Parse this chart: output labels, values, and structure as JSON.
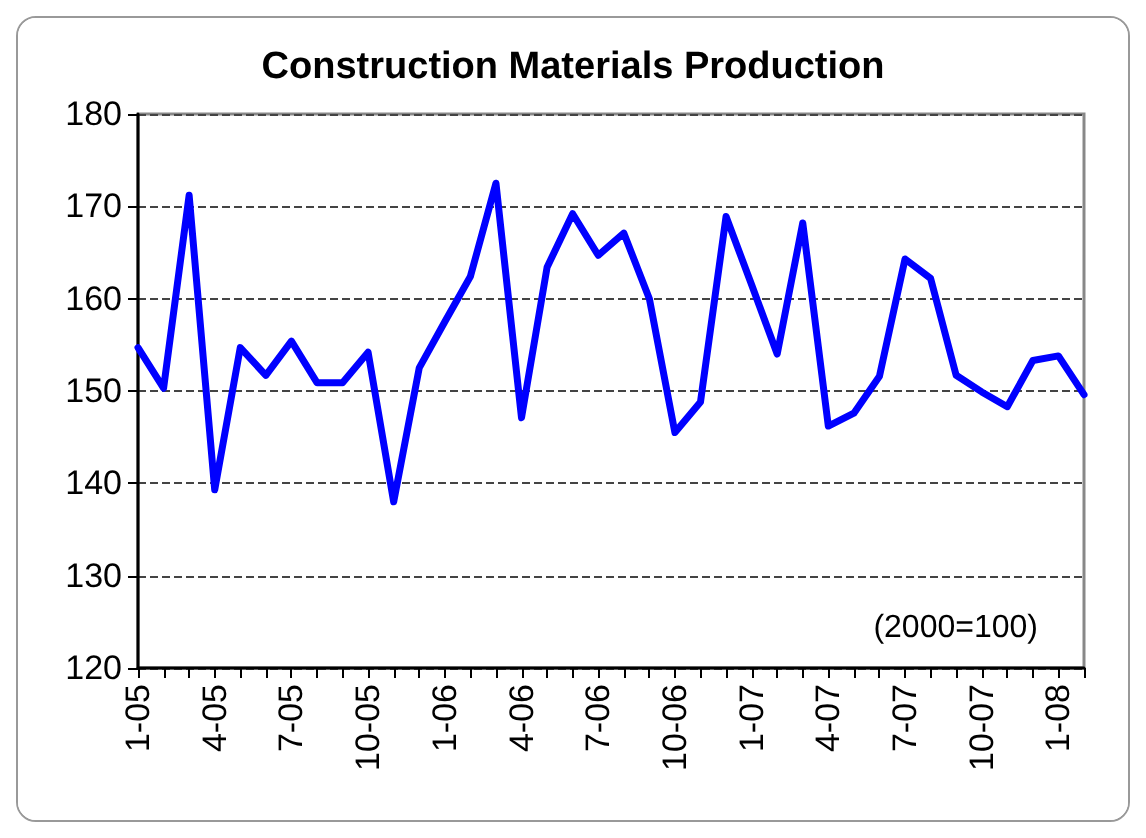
{
  "chart_data": {
    "type": "line",
    "title": "Construction Materials Production",
    "categories": [
      "1-05",
      null,
      null,
      "4-05",
      null,
      null,
      "7-05",
      null,
      null,
      "10-05",
      null,
      null,
      "1-06",
      null,
      null,
      "4-06",
      null,
      null,
      "7-06",
      null,
      null,
      "10-06",
      null,
      null,
      "1-07",
      null,
      null,
      "4-07",
      null,
      null,
      "7-07",
      null,
      null,
      "10-07",
      null,
      null,
      "1-08",
      null
    ],
    "series": [
      {
        "color": "#0000ff",
        "values": [
          154.7,
          150.3,
          171.2,
          139.3,
          154.7,
          151.7,
          155.4,
          150.9,
          150.9,
          154.2,
          138.0,
          152.5,
          157.5,
          162.4,
          172.5,
          147.1,
          163.4,
          169.2,
          164.7,
          167.1,
          160.0,
          145.5,
          148.8,
          168.9,
          161.5,
          154.0,
          168.2,
          146.2,
          147.6,
          151.6,
          164.3,
          162.2,
          151.7,
          149.9,
          148.3,
          153.3,
          153.8,
          149.6
        ]
      }
    ],
    "ylim": [
      120,
      180
    ],
    "yticks": [
      120,
      130,
      140,
      150,
      160,
      170,
      180
    ],
    "grid": "y",
    "marker": "none",
    "annotations": [
      "(2000=100)"
    ]
  }
}
